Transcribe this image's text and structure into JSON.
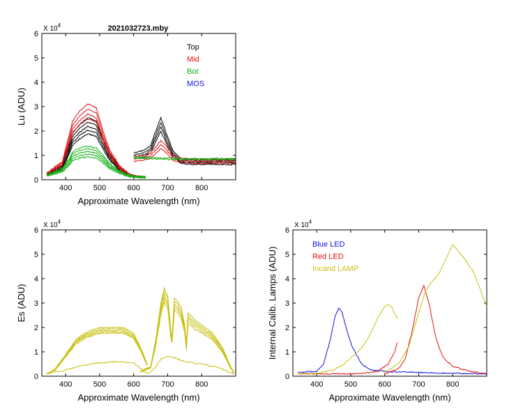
{
  "figure_title": "2021032723.mby",
  "chart_data": [
    {
      "id": "lu",
      "type": "line",
      "title": "2021032723.mby",
      "xlabel": "Approximate Wavelength (nm)",
      "ylabel": "Lu (ADU)",
      "multiplier_label": "X 10",
      "multiplier_exp": "4",
      "xlim": [
        330,
        900
      ],
      "ylim": [
        0,
        6
      ],
      "xticks": [
        "400",
        "500",
        "600",
        "700",
        "800"
      ],
      "xtick_values": [
        400,
        500,
        600,
        700,
        800
      ],
      "yticks": [
        "0",
        "1",
        "2",
        "3",
        "4",
        "5",
        "6"
      ],
      "ytick_values": [
        0,
        1,
        2,
        3,
        4,
        5,
        6
      ],
      "legend": [
        {
          "label": "Top",
          "color": "#000000"
        },
        {
          "label": "Mid",
          "color": "#e01010"
        },
        {
          "label": "Bot",
          "color": "#10b010"
        },
        {
          "label": "MOS",
          "color": "#1010e0"
        }
      ],
      "series": [
        {
          "name": "Top",
          "color": "#000000",
          "segment": "blue",
          "x": [
            345,
            390,
            410,
            420,
            440,
            465,
            490,
            510,
            530,
            560,
            590,
            610,
            635
          ],
          "y": [
            0.25,
            0.6,
            1.4,
            1.9,
            2.25,
            2.55,
            2.4,
            1.7,
            1.05,
            0.5,
            0.2,
            0.15,
            0.12
          ],
          "copies": [
            1.0,
            0.93,
            0.86,
            0.8,
            0.74
          ]
        },
        {
          "name": "Top",
          "color": "#000000",
          "segment": "red",
          "x": [
            600,
            630,
            650,
            665,
            680,
            695,
            715,
            740,
            770,
            820,
            900
          ],
          "y": [
            1.1,
            1.2,
            1.4,
            2.0,
            2.55,
            1.95,
            1.2,
            0.85,
            0.8,
            0.8,
            0.8
          ],
          "copies": [
            1.0,
            0.92,
            0.85,
            0.78
          ]
        },
        {
          "name": "Mid",
          "color": "#e01010",
          "segment": "blue",
          "x": [
            345,
            390,
            410,
            420,
            440,
            465,
            490,
            510,
            530,
            560,
            590,
            610,
            635
          ],
          "y": [
            0.28,
            0.75,
            1.8,
            2.4,
            2.8,
            3.12,
            2.95,
            2.0,
            1.2,
            0.55,
            0.22,
            0.16,
            0.12
          ],
          "copies": [
            1.0,
            0.93,
            0.86,
            0.8
          ]
        },
        {
          "name": "Mid",
          "color": "#e01010",
          "segment": "red",
          "x": [
            600,
            630,
            650,
            665,
            680,
            695,
            715,
            740,
            770,
            820,
            900
          ],
          "y": [
            0.95,
            1.0,
            1.1,
            1.35,
            1.6,
            1.4,
            1.0,
            0.88,
            0.85,
            0.85,
            0.85
          ],
          "copies": [
            1.0,
            0.9,
            0.8
          ]
        },
        {
          "name": "Bot",
          "color": "#10b010",
          "segment": "blue",
          "x": [
            345,
            390,
            410,
            420,
            440,
            465,
            490,
            510,
            530,
            560,
            590,
            610,
            635
          ],
          "y": [
            0.22,
            0.45,
            0.85,
            1.15,
            1.3,
            1.38,
            1.3,
            1.0,
            0.65,
            0.35,
            0.18,
            0.14,
            0.12
          ],
          "copies": [
            1.0,
            0.92,
            0.84,
            0.76,
            0.68
          ]
        },
        {
          "name": "Bot",
          "color": "#10b010",
          "segment": "red",
          "x": [
            600,
            650,
            700,
            750,
            820,
            900
          ],
          "y": [
            0.95,
            0.9,
            0.88,
            0.87,
            0.87,
            0.87
          ],
          "copies": [
            1.0,
            0.95
          ]
        }
      ]
    },
    {
      "id": "es",
      "type": "line",
      "xlabel": "Approximate Wavelength (nm)",
      "ylabel": "Es  (ADU)",
      "multiplier_label": "X 10",
      "multiplier_exp": "4",
      "xlim": [
        330,
        900
      ],
      "ylim": [
        0,
        6
      ],
      "xticks": [
        "400",
        "500",
        "600",
        "700",
        "800"
      ],
      "xtick_values": [
        400,
        500,
        600,
        700,
        800
      ],
      "yticks": [
        "0",
        "1",
        "2",
        "3",
        "4",
        "5",
        "6"
      ],
      "ytick_values": [
        0,
        1,
        2,
        3,
        4,
        5,
        6
      ],
      "series": [
        {
          "name": "Es",
          "color": "#c8c010",
          "x": [
            345,
            370,
            400,
            430,
            460,
            500,
            540,
            570,
            600,
            620,
            640
          ],
          "y": [
            0.1,
            0.3,
            0.9,
            1.5,
            1.8,
            2.0,
            2.0,
            2.0,
            1.75,
            1.2,
            0.5
          ],
          "copies": [
            1.0,
            0.97,
            0.94,
            0.91,
            0.88
          ]
        },
        {
          "name": "Es",
          "color": "#c8c010",
          "x": [
            620,
            650,
            665,
            680,
            690,
            700,
            712,
            720,
            728,
            740,
            750,
            755,
            760,
            780,
            800,
            830,
            860,
            885,
            895
          ],
          "y": [
            0.2,
            0.4,
            1.5,
            3.0,
            3.6,
            3.3,
            1.5,
            3.2,
            3.1,
            2.8,
            2.1,
            1.3,
            2.6,
            2.3,
            2.1,
            1.8,
            1.2,
            0.4,
            0.15
          ],
          "copies": [
            1.0,
            0.96,
            0.92,
            0.88,
            0.84
          ]
        },
        {
          "name": "Es",
          "color": "#c8c010",
          "x": [
            345,
            400,
            450,
            500,
            550,
            600,
            640,
            660,
            680,
            700,
            720,
            750,
            800,
            850,
            895
          ],
          "y": [
            0.1,
            0.25,
            0.45,
            0.55,
            0.6,
            0.55,
            0.1,
            0.3,
            0.7,
            0.8,
            0.75,
            0.6,
            0.5,
            0.35,
            0.1
          ],
          "copies": [
            1.0
          ]
        }
      ]
    },
    {
      "id": "lamps",
      "type": "line",
      "xlabel": "Approximate Wavelength (nm)",
      "ylabel": "Internal Calib. Lamps  (ADU)",
      "multiplier_label": "X 10",
      "multiplier_exp": "4",
      "xlim": [
        330,
        900
      ],
      "ylim": [
        0,
        6
      ],
      "xticks": [
        "400",
        "500",
        "600",
        "700",
        "800"
      ],
      "xtick_values": [
        400,
        500,
        600,
        700,
        800
      ],
      "yticks": [
        "0",
        "1",
        "2",
        "3",
        "4",
        "5",
        "6"
      ],
      "ytick_values": [
        0,
        1,
        2,
        3,
        4,
        5,
        6
      ],
      "legend": [
        {
          "label": "Blue LED",
          "color": "#1010e0"
        },
        {
          "label": "Red LED",
          "color": "#e01010"
        },
        {
          "label": "Incand LAMP",
          "color": "#c8c010"
        }
      ],
      "series": [
        {
          "name": "Blue LED",
          "color": "#1010e0",
          "x": [
            345,
            400,
            420,
            440,
            455,
            465,
            475,
            490,
            505,
            520,
            535,
            560,
            600,
            650,
            700,
            800,
            900
          ],
          "y": [
            0.15,
            0.2,
            0.5,
            1.5,
            2.5,
            2.8,
            2.6,
            1.8,
            1.2,
            0.8,
            0.45,
            0.25,
            0.2,
            0.17,
            0.15,
            0.12,
            0.1
          ],
          "copies": [
            1.0
          ]
        },
        {
          "name": "Red LED",
          "color": "#e01010",
          "segment": "blue",
          "x": [
            345,
            400,
            450,
            500,
            540,
            580,
            610,
            630,
            638
          ],
          "y": [
            0.1,
            0.1,
            0.1,
            0.1,
            0.12,
            0.2,
            0.5,
            1.0,
            1.45
          ],
          "copies": [
            1.0
          ]
        },
        {
          "name": "Red LED",
          "color": "#e01010",
          "x": [
            600,
            640,
            660,
            680,
            700,
            715,
            730,
            750,
            770,
            800,
            850,
            900
          ],
          "y": [
            0.1,
            0.3,
            0.7,
            1.8,
            3.2,
            3.7,
            3.0,
            1.6,
            0.8,
            0.4,
            0.2,
            0.1
          ],
          "copies": [
            1.0
          ]
        },
        {
          "name": "Incand LAMP",
          "color": "#c8c010",
          "segment": "blue",
          "x": [
            345,
            400,
            450,
            480,
            500,
            520,
            540,
            560,
            580,
            600,
            610,
            620,
            630,
            638
          ],
          "y": [
            0.1,
            0.12,
            0.25,
            0.5,
            0.75,
            1.0,
            1.3,
            1.8,
            2.4,
            2.85,
            2.95,
            2.85,
            2.55,
            2.35
          ],
          "copies": [
            1.0
          ]
        },
        {
          "name": "Incand LAMP",
          "color": "#c8c010",
          "x": [
            600,
            640,
            670,
            700,
            720,
            740,
            760,
            780,
            800,
            830,
            860,
            880,
            900
          ],
          "y": [
            0.15,
            0.5,
            1.2,
            2.6,
            3.5,
            3.9,
            4.2,
            4.8,
            5.4,
            4.9,
            4.3,
            3.6,
            2.85
          ],
          "copies": [
            1.0
          ]
        }
      ]
    }
  ]
}
